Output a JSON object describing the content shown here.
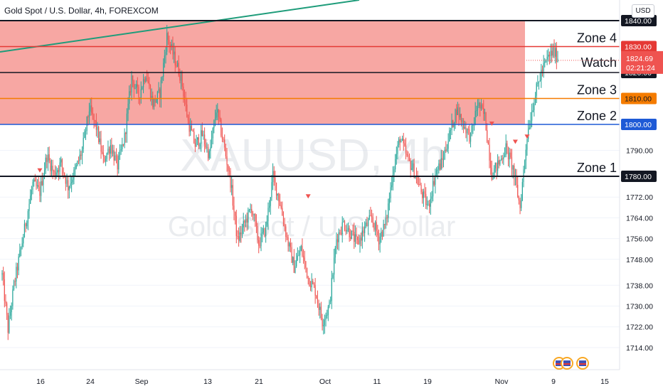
{
  "header": {
    "title": "Gold Spot / U.S. Dollar, 4h, FOREXCOM",
    "currency_button": "USD"
  },
  "watermark": {
    "symbol": "XAUUSD, 4h",
    "name": "Gold Spot / U.S. Dollar"
  },
  "colors": {
    "up": "#26a69a",
    "down": "#ef5350",
    "zone_fill": "#f7a29e",
    "trendline": "#1e9c7a",
    "line_1840": "#131722",
    "line_1830": "#e53935",
    "line_1820": "#131722",
    "line_1810": "#f57c00",
    "line_1800": "#1e5ad6",
    "line_1780": "#131722",
    "current_price": "#ef5350"
  },
  "chart_data": {
    "type": "candlestick",
    "symbol": "XAUUSD",
    "timeframe": "4h",
    "ylim": [
      1710,
      1850
    ],
    "x_ticks": [
      "16",
      "24",
      "Sep",
      "13",
      "21",
      "Oct",
      "11",
      "19",
      "Nov",
      "9",
      "15"
    ],
    "y_ticks": [
      1714.0,
      1722.0,
      1730.0,
      1738.0,
      1748.0,
      1756.0,
      1764.0,
      1772.0,
      1790.0
    ],
    "highlight_zone": {
      "from": 1800,
      "to": 1840
    },
    "levels": [
      {
        "price": 1840.0,
        "label": "1840.00",
        "color_key": "line_1840",
        "zone_name": ""
      },
      {
        "price": 1830.0,
        "label": "1830.00",
        "color_key": "line_1830",
        "zone_name": "Zone 4"
      },
      {
        "price": 1820.0,
        "label": "1820.00",
        "color_key": "line_1820",
        "zone_name": "Watch"
      },
      {
        "price": 1810.0,
        "label": "1810.00",
        "color_key": "line_1810",
        "zone_name": "Zone 3"
      },
      {
        "price": 1800.0,
        "label": "1800.00",
        "color_key": "line_1800",
        "zone_name": "Zone 2"
      },
      {
        "price": 1780.0,
        "label": "1780.00",
        "color_key": "line_1780",
        "zone_name": "Zone 1"
      }
    ],
    "current_price": {
      "price": 1824.69,
      "label": "1824.69",
      "countdown": "02:21:24"
    },
    "price_path": [
      [
        0,
        1742
      ],
      [
        5,
        1721
      ],
      [
        10,
        1738
      ],
      [
        18,
        1757
      ],
      [
        26,
        1777
      ],
      [
        32,
        1774
      ],
      [
        38,
        1788
      ],
      [
        44,
        1781
      ],
      [
        50,
        1785
      ],
      [
        56,
        1776
      ],
      [
        62,
        1782
      ],
      [
        68,
        1790
      ],
      [
        74,
        1806
      ],
      [
        80,
        1799
      ],
      [
        86,
        1786
      ],
      [
        92,
        1792
      ],
      [
        98,
        1784
      ],
      [
        104,
        1795
      ],
      [
        110,
        1818
      ],
      [
        116,
        1811
      ],
      [
        122,
        1820
      ],
      [
        128,
        1808
      ],
      [
        134,
        1812
      ],
      [
        140,
        1834
      ],
      [
        146,
        1826
      ],
      [
        152,
        1818
      ],
      [
        158,
        1801
      ],
      [
        164,
        1792
      ],
      [
        170,
        1796
      ],
      [
        176,
        1788
      ],
      [
        182,
        1806
      ],
      [
        188,
        1793
      ],
      [
        194,
        1778
      ],
      [
        200,
        1755
      ],
      [
        206,
        1762
      ],
      [
        212,
        1768
      ],
      [
        218,
        1754
      ],
      [
        224,
        1760
      ],
      [
        230,
        1780
      ],
      [
        236,
        1770
      ],
      [
        242,
        1756
      ],
      [
        248,
        1745
      ],
      [
        254,
        1752
      ],
      [
        260,
        1741
      ],
      [
        266,
        1736
      ],
      [
        272,
        1724
      ],
      [
        278,
        1730
      ],
      [
        284,
        1756
      ],
      [
        290,
        1762
      ],
      [
        296,
        1758
      ],
      [
        302,
        1754
      ],
      [
        308,
        1760
      ],
      [
        314,
        1764
      ],
      [
        320,
        1756
      ],
      [
        326,
        1762
      ],
      [
        332,
        1782
      ],
      [
        338,
        1795
      ],
      [
        344,
        1787
      ],
      [
        350,
        1782
      ],
      [
        356,
        1774
      ],
      [
        362,
        1768
      ],
      [
        368,
        1781
      ],
      [
        374,
        1786
      ],
      [
        380,
        1796
      ],
      [
        386,
        1806
      ],
      [
        392,
        1800
      ],
      [
        398,
        1795
      ],
      [
        404,
        1808
      ],
      [
        410,
        1803
      ],
      [
        416,
        1781
      ],
      [
        422,
        1785
      ],
      [
        428,
        1791
      ],
      [
        434,
        1783
      ],
      [
        440,
        1768
      ],
      [
        446,
        1796
      ],
      [
        452,
        1810
      ],
      [
        458,
        1820
      ],
      [
        464,
        1826
      ],
      [
        468,
        1828
      ],
      [
        472,
        1826
      ]
    ],
    "sell_markers": [
      {
        "i": 32,
        "price": 1782
      },
      {
        "i": 260,
        "price": 1772
      },
      {
        "i": 416,
        "price": 1800
      },
      {
        "i": 436,
        "price": 1793
      },
      {
        "i": 446,
        "price": 1795
      }
    ]
  }
}
